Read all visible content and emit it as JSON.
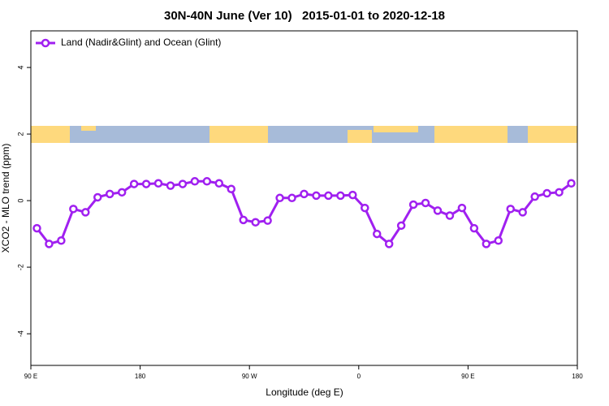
{
  "chart_data": {
    "type": "line",
    "title": "30N-40N June (Ver 10)   2015-01-01 to 2020-12-18",
    "xlabel": "Longitude (deg E)",
    "ylabel": "XCO2 - MLO trend (ppm)",
    "x": [
      95,
      105,
      115,
      125,
      135,
      145,
      155,
      165,
      175,
      185,
      195,
      205,
      215,
      225,
      235,
      245,
      255,
      265,
      275,
      285,
      295,
      305,
      315,
      325,
      335,
      345,
      355,
      365,
      375,
      385,
      395,
      405,
      415,
      425,
      435,
      445,
      455,
      465,
      475,
      485,
      495,
      505,
      515,
      525,
      535
    ],
    "series": [
      {
        "name": "Land (Nadir&Glint) and Ocean (Glint)",
        "color": "#a020f0",
        "values": [
          -0.83,
          -1.3,
          -1.2,
          -0.25,
          -0.35,
          0.1,
          0.2,
          0.25,
          0.5,
          0.5,
          0.52,
          0.45,
          0.5,
          0.58,
          0.58,
          0.52,
          0.35,
          -0.58,
          -0.65,
          -0.6,
          0.08,
          0.08,
          0.2,
          0.15,
          0.15,
          0.15,
          0.17,
          -0.22,
          -1.0,
          -1.3,
          -0.75,
          -0.12,
          -0.07,
          -0.3,
          -0.45,
          -0.22,
          -0.83,
          -1.3,
          -1.2,
          -0.25,
          -0.35,
          0.12,
          0.22,
          0.25,
          0.52
        ]
      }
    ],
    "xlim": [
      90,
      540
    ],
    "xticks": [
      {
        "value": 90,
        "label": "90 E"
      },
      {
        "value": 180,
        "label": "180"
      },
      {
        "value": 270,
        "label": "90 W"
      },
      {
        "value": 360,
        "label": "0"
      },
      {
        "value": 450,
        "label": "90 E"
      },
      {
        "value": 540,
        "label": "180"
      }
    ],
    "ylim": [
      -4.95,
      5.1
    ],
    "yticks": [
      -4,
      -2,
      0,
      2,
      4
    ],
    "legend": "top-left"
  }
}
